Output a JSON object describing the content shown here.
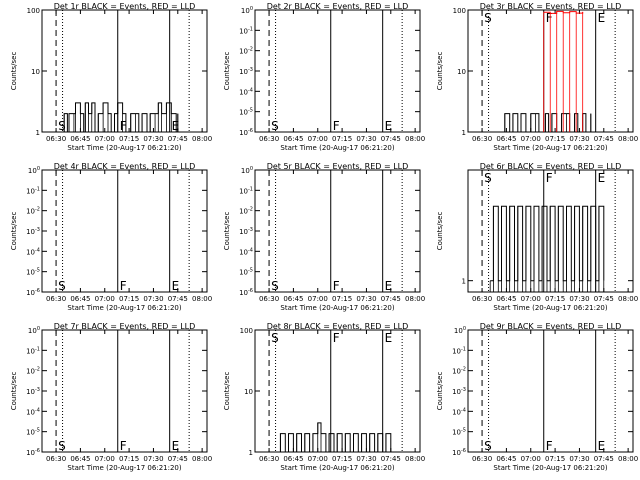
{
  "figure": {
    "colors": {
      "events": "#000000",
      "lld": "#ff0000",
      "background": "#ffffff"
    }
  },
  "chart_data": [
    {
      "type": "line",
      "title": "Det 1r BLACK = Events, RED = LLD",
      "xlabel": "Start Time (20-Aug-17 06:21:20)",
      "ylabel": "Counts/sec",
      "x_ticks": [
        "06:30",
        "06:45",
        "07:00",
        "07:15",
        "07:30",
        "07:45",
        "08:00"
      ],
      "y_scale": "log",
      "y_ticks": [
        "1",
        "10",
        "100"
      ],
      "markers": [
        {
          "label": "S",
          "time": "06:30"
        },
        {
          "label": "F",
          "time": "07:08"
        },
        {
          "label": "E",
          "time": "07:40"
        }
      ],
      "dotted_lines": [
        "06:34",
        "07:52"
      ],
      "series": [
        {
          "color": "#000000",
          "points": [
            [
              "06:34",
              1
            ],
            [
              "06:35",
              2
            ],
            [
              "06:37",
              1
            ],
            [
              "06:38",
              2
            ],
            [
              "06:41",
              2
            ],
            [
              "06:42",
              3
            ],
            [
              "06:45",
              2
            ],
            [
              "06:47",
              1
            ],
            [
              "06:48",
              3
            ],
            [
              "06:50",
              2
            ],
            [
              "06:52",
              3
            ],
            [
              "06:54",
              1
            ],
            [
              "06:56",
              2
            ],
            [
              "06:59",
              3
            ],
            [
              "07:02",
              2
            ],
            [
              "07:04",
              1
            ],
            [
              "07:06",
              2
            ],
            [
              "07:08",
              3
            ],
            [
              "07:11",
              2
            ],
            [
              "07:13",
              1
            ],
            [
              "07:16",
              2
            ],
            [
              "07:19",
              2
            ],
            [
              "07:21",
              1
            ],
            [
              "07:23",
              2
            ],
            [
              "07:26",
              1
            ],
            [
              "07:28",
              2
            ],
            [
              "07:31",
              2
            ],
            [
              "07:33",
              3
            ],
            [
              "07:35",
              2
            ],
            [
              "07:38",
              3
            ],
            [
              "07:41",
              2
            ],
            [
              "07:44",
              1
            ],
            [
              "07:45",
              2
            ]
          ]
        }
      ]
    },
    {
      "type": "line",
      "title": "Det 2r BLACK = Events, RED = LLD",
      "xlabel": "Start Time (20-Aug-17 06:21:20)",
      "ylabel": "Counts/sec",
      "x_ticks": [
        "06:30",
        "06:45",
        "07:00",
        "07:15",
        "07:30",
        "07:45",
        "08:00"
      ],
      "y_scale": "log",
      "y_ticks": [
        "10^0",
        "10^-1",
        "10^-2",
        "10^-3",
        "10^-4",
        "10^-5",
        "10^-6"
      ],
      "markers": [
        {
          "label": "S",
          "time": "06:30"
        },
        {
          "label": "F",
          "time": "07:08"
        },
        {
          "label": "E",
          "time": "07:40"
        }
      ],
      "dotted_lines": [
        "06:34",
        "07:52"
      ],
      "series": []
    },
    {
      "type": "line",
      "title": "Det 3r BLACK = Events, RED = LLD",
      "xlabel": "Start Time (20-Aug-17 06:21:20)",
      "ylabel": "Counts/sec",
      "x_ticks": [
        "06:30",
        "06:45",
        "07:00",
        "07:15",
        "07:30",
        "07:45",
        "08:00"
      ],
      "y_scale": "log",
      "y_ticks": [
        "1",
        "10",
        "100"
      ],
      "markers": [
        {
          "label": "S",
          "time": "06:30"
        },
        {
          "label": "F",
          "time": "07:08"
        },
        {
          "label": "E",
          "time": "07:40"
        }
      ],
      "dotted_lines": [
        "06:34",
        "07:52"
      ],
      "series": [
        {
          "color": "#000000",
          "points": [
            [
              "06:42",
              1
            ],
            [
              "06:44",
              2
            ],
            [
              "06:47",
              1
            ],
            [
              "06:49",
              2
            ],
            [
              "06:52",
              1
            ],
            [
              "06:54",
              2
            ],
            [
              "06:57",
              1
            ],
            [
              "07:00",
              2
            ],
            [
              "07:03",
              2
            ],
            [
              "07:05",
              1
            ],
            [
              "07:09",
              2
            ],
            [
              "07:11",
              1
            ],
            [
              "07:13",
              2
            ],
            [
              "07:16",
              1
            ],
            [
              "07:19",
              2
            ],
            [
              "07:22",
              2
            ],
            [
              "07:24",
              1
            ],
            [
              "07:27",
              2
            ],
            [
              "07:29",
              1
            ],
            [
              "07:32",
              2
            ],
            [
              "07:34",
              1
            ],
            [
              "07:37",
              2
            ]
          ]
        },
        {
          "color": "#ff0000",
          "points": [
            [
              "07:08",
              92
            ],
            [
              "07:12",
              88
            ],
            [
              "07:16",
              95
            ],
            [
              "07:20",
              90
            ],
            [
              "07:24",
              94
            ],
            [
              "07:28",
              89
            ],
            [
              "07:32",
              93
            ]
          ]
        }
      ]
    },
    {
      "type": "line",
      "title": "Det 4r BLACK = Events, RED = LLD",
      "xlabel": "Start Time (20-Aug-17 06:21:20)",
      "ylabel": "Counts/sec",
      "x_ticks": [
        "06:30",
        "06:45",
        "07:00",
        "07:15",
        "07:30",
        "07:45",
        "08:00"
      ],
      "y_scale": "log",
      "y_ticks": [
        "10^0",
        "10^-1",
        "10^-2",
        "10^-3",
        "10^-4",
        "10^-5",
        "10^-6"
      ],
      "markers": [
        {
          "label": "S",
          "time": "06:30"
        },
        {
          "label": "F",
          "time": "07:08"
        },
        {
          "label": "E",
          "time": "07:40"
        }
      ],
      "dotted_lines": [
        "06:34",
        "07:52"
      ],
      "series": []
    },
    {
      "type": "line",
      "title": "Det 5r BLACK = Events, RED = LLD",
      "xlabel": "Start Time (20-Aug-17 06:21:20)",
      "ylabel": "Counts/sec",
      "x_ticks": [
        "06:30",
        "06:45",
        "07:00",
        "07:15",
        "07:30",
        "07:45",
        "08:00"
      ],
      "y_scale": "log",
      "y_ticks": [
        "10^0",
        "10^-1",
        "10^-2",
        "10^-3",
        "10^-4",
        "10^-5",
        "10^-6"
      ],
      "markers": [
        {
          "label": "S",
          "time": "06:30"
        },
        {
          "label": "F",
          "time": "07:08"
        },
        {
          "label": "E",
          "time": "07:40"
        }
      ],
      "dotted_lines": [
        "06:34",
        "07:52"
      ],
      "series": []
    },
    {
      "type": "line",
      "title": "Det 6r BLACK = Events, RED = LLD",
      "xlabel": "Start Time (20-Aug-17 06:21:20)",
      "ylabel": "Counts/sec",
      "x_ticks": [
        "06:30",
        "06:45",
        "07:00",
        "07:15",
        "07:30",
        "07:45",
        "08:00"
      ],
      "y_scale": "log",
      "y_ticks": [
        "1"
      ],
      "markers": [
        {
          "label": "S",
          "time": "06:30"
        },
        {
          "label": "F",
          "time": "07:08"
        },
        {
          "label": "E",
          "time": "07:40"
        }
      ],
      "dotted_lines": [
        "06:34",
        "07:52"
      ],
      "series": [
        {
          "color": "#000000",
          "points": [
            [
              "06:35",
              1
            ],
            [
              "06:37",
              2
            ],
            [
              "06:40",
              1
            ],
            [
              "06:42",
              2
            ],
            [
              "06:45",
              1
            ],
            [
              "06:47",
              2
            ],
            [
              "06:50",
              1
            ],
            [
              "06:52",
              2
            ],
            [
              "06:55",
              1
            ],
            [
              "06:57",
              2
            ],
            [
              "07:00",
              1
            ],
            [
              "07:02",
              2
            ],
            [
              "07:05",
              1
            ],
            [
              "07:07",
              2
            ],
            [
              "07:10",
              1
            ],
            [
              "07:12",
              2
            ],
            [
              "07:15",
              1
            ],
            [
              "07:17",
              2
            ],
            [
              "07:20",
              1
            ],
            [
              "07:22",
              2
            ],
            [
              "07:25",
              1
            ],
            [
              "07:27",
              2
            ],
            [
              "07:30",
              1
            ],
            [
              "07:32",
              2
            ],
            [
              "07:35",
              1
            ],
            [
              "07:37",
              2
            ],
            [
              "07:40",
              1
            ],
            [
              "07:42",
              2
            ],
            [
              "07:45",
              1
            ]
          ]
        }
      ]
    },
    {
      "type": "line",
      "title": "Det 7r BLACK = Events, RED = LLD",
      "xlabel": "Start Time (20-Aug-17 06:21:20)",
      "ylabel": "Counts/sec",
      "x_ticks": [
        "06:30",
        "06:45",
        "07:00",
        "07:15",
        "07:30",
        "07:45",
        "08:00"
      ],
      "y_scale": "log",
      "y_ticks": [
        "10^0",
        "10^-1",
        "10^-2",
        "10^-3",
        "10^-4",
        "10^-5",
        "10^-6"
      ],
      "markers": [
        {
          "label": "S",
          "time": "06:30"
        },
        {
          "label": "F",
          "time": "07:08"
        },
        {
          "label": "E",
          "time": "07:40"
        }
      ],
      "dotted_lines": [
        "06:34",
        "07:52"
      ],
      "series": []
    },
    {
      "type": "line",
      "title": "Det 8r BLACK = Events, RED = LLD",
      "xlabel": "Start Time (20-Aug-17 06:21:20)",
      "ylabel": "Counts/sec",
      "x_ticks": [
        "06:30",
        "06:45",
        "07:00",
        "07:15",
        "07:30",
        "07:45",
        "08:00"
      ],
      "y_scale": "log",
      "y_ticks": [
        "1",
        "10",
        "100"
      ],
      "markers": [
        {
          "label": "S",
          "time": "06:30"
        },
        {
          "label": "F",
          "time": "07:08"
        },
        {
          "label": "E",
          "time": "07:40"
        }
      ],
      "dotted_lines": [
        "06:34",
        "07:52"
      ],
      "series": [
        {
          "color": "#000000",
          "points": [
            [
              "06:35",
              1
            ],
            [
              "06:37",
              2
            ],
            [
              "06:40",
              1
            ],
            [
              "06:42",
              2
            ],
            [
              "06:45",
              1
            ],
            [
              "06:47",
              2
            ],
            [
              "06:50",
              1
            ],
            [
              "06:52",
              2
            ],
            [
              "06:55",
              1
            ],
            [
              "06:57",
              2
            ],
            [
              "07:00",
              3
            ],
            [
              "07:02",
              2
            ],
            [
              "07:05",
              1
            ],
            [
              "07:07",
              2
            ],
            [
              "07:10",
              1
            ],
            [
              "07:12",
              2
            ],
            [
              "07:15",
              1
            ],
            [
              "07:17",
              2
            ],
            [
              "07:20",
              1
            ],
            [
              "07:22",
              2
            ],
            [
              "07:25",
              1
            ],
            [
              "07:27",
              2
            ],
            [
              "07:30",
              1
            ],
            [
              "07:32",
              2
            ],
            [
              "07:35",
              1
            ],
            [
              "07:37",
              2
            ],
            [
              "07:40",
              1
            ],
            [
              "07:42",
              2
            ],
            [
              "07:45",
              1
            ]
          ]
        }
      ]
    },
    {
      "type": "line",
      "title": "Det 9r BLACK = Events, RED = LLD",
      "xlabel": "Start Time (20-Aug-17 06:21:20)",
      "ylabel": "Counts/sec",
      "x_ticks": [
        "06:30",
        "06:45",
        "07:00",
        "07:15",
        "07:30",
        "07:45",
        "08:00"
      ],
      "y_scale": "log",
      "y_ticks": [
        "10^0",
        "10^-1",
        "10^-2",
        "10^-3",
        "10^-4",
        "10^-5",
        "10^-6"
      ],
      "markers": [
        {
          "label": "S",
          "time": "06:30"
        },
        {
          "label": "F",
          "time": "07:08"
        },
        {
          "label": "E",
          "time": "07:40"
        }
      ],
      "dotted_lines": [
        "06:34",
        "07:52"
      ],
      "series": []
    }
  ]
}
